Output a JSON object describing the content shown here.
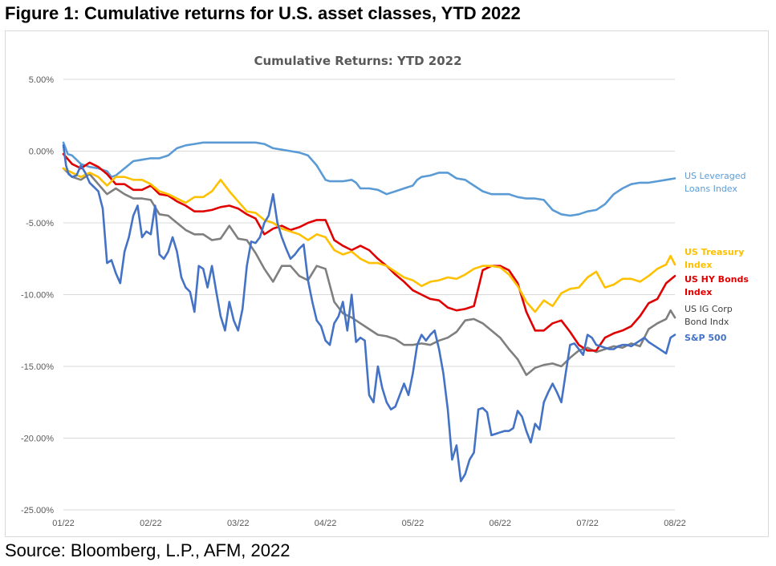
{
  "figure_title": "Figure 1: Cumulative returns for U.S. asset classes, YTD 2022",
  "source": "Source: Bloomberg, L.P., AFM, 2022",
  "colors": {
    "leveraged_loans": "#5b9bd5",
    "treasury": "#ffc000",
    "hy_bonds": "#e00000",
    "ig_corp": "#7f7f7f",
    "sp500": "#4472c4",
    "grid": "#d9d9d9",
    "axis_text": "#595959"
  },
  "chart_data": {
    "type": "line",
    "title": "Cumulative Returns: YTD 2022",
    "xlabel": "",
    "ylabel": "",
    "x_tick_labels": [
      "01/22",
      "02/22",
      "03/22",
      "04/22",
      "05/22",
      "06/22",
      "07/22",
      "08/22"
    ],
    "y_tick_labels": [
      "5.00%",
      "0.00%",
      "-5.00%",
      "-10.00%",
      "-15.00%",
      "-20.00%",
      "-25.00%"
    ],
    "y_ticks": [
      5,
      0,
      -5,
      -10,
      -15,
      -20,
      -25
    ],
    "ylim": [
      -25,
      5
    ],
    "xlim": [
      1,
      8
    ],
    "grid": "horizontal",
    "legend_placement": "right",
    "series": [
      {
        "name": "US Leveraged Loans Index",
        "legend_lines": [
          "US Leveraged",
          "Loans Index"
        ],
        "color_key": "leveraged_loans",
        "x": [
          1.0,
          1.05,
          1.1,
          1.2,
          1.3,
          1.4,
          1.5,
          1.55,
          1.6,
          1.7,
          1.8,
          1.9,
          2.0,
          2.1,
          2.2,
          2.3,
          2.4,
          2.5,
          2.6,
          2.7,
          2.8,
          2.9,
          3.0,
          3.1,
          3.2,
          3.3,
          3.4,
          3.5,
          3.6,
          3.7,
          3.8,
          3.9,
          4.0,
          4.05,
          4.1,
          4.2,
          4.3,
          4.35,
          4.4,
          4.5,
          4.6,
          4.7,
          4.8,
          4.9,
          5.0,
          5.05,
          5.1,
          5.2,
          5.3,
          5.4,
          5.5,
          5.6,
          5.7,
          5.8,
          5.9,
          6.0,
          6.1,
          6.2,
          6.3,
          6.4,
          6.5,
          6.6,
          6.7,
          6.8,
          6.9,
          7.0,
          7.1,
          7.2,
          7.3,
          7.4,
          7.5,
          7.6,
          7.7,
          7.8,
          7.9,
          8.0
        ],
        "y": [
          0.6,
          -0.2,
          -0.3,
          -0.9,
          -1.1,
          -1.2,
          -1.4,
          -1.8,
          -1.7,
          -1.2,
          -0.7,
          -0.6,
          -0.5,
          -0.5,
          -0.3,
          0.2,
          0.4,
          0.5,
          0.6,
          0.6,
          0.6,
          0.6,
          0.6,
          0.6,
          0.6,
          0.5,
          0.2,
          0.1,
          0.0,
          -0.1,
          -0.3,
          -1.0,
          -2.0,
          -2.1,
          -2.1,
          -2.1,
          -2.0,
          -2.2,
          -2.6,
          -2.6,
          -2.7,
          -3.0,
          -2.8,
          -2.6,
          -2.4,
          -2.0,
          -1.8,
          -1.7,
          -1.5,
          -1.5,
          -1.9,
          -2.0,
          -2.4,
          -2.8,
          -3.0,
          -3.0,
          -3.0,
          -3.2,
          -3.3,
          -3.3,
          -3.4,
          -4.1,
          -4.4,
          -4.5,
          -4.4,
          -4.2,
          -4.1,
          -3.7,
          -3.0,
          -2.6,
          -2.3,
          -2.2,
          -2.2,
          -2.1,
          -2.0,
          -1.9
        ]
      },
      {
        "name": "US Treasury Index",
        "legend_lines": [
          "US Treasury",
          "Index"
        ],
        "color_key": "treasury",
        "x": [
          1.0,
          1.1,
          1.2,
          1.3,
          1.4,
          1.5,
          1.6,
          1.7,
          1.8,
          1.9,
          2.0,
          2.1,
          2.2,
          2.3,
          2.4,
          2.5,
          2.6,
          2.7,
          2.8,
          2.9,
          3.0,
          3.1,
          3.2,
          3.3,
          3.4,
          3.5,
          3.6,
          3.7,
          3.8,
          3.9,
          4.0,
          4.1,
          4.2,
          4.3,
          4.4,
          4.5,
          4.6,
          4.7,
          4.8,
          4.9,
          5.0,
          5.1,
          5.2,
          5.3,
          5.4,
          5.5,
          5.6,
          5.7,
          5.8,
          5.9,
          6.0,
          6.1,
          6.2,
          6.3,
          6.4,
          6.5,
          6.6,
          6.7,
          6.8,
          6.9,
          7.0,
          7.1,
          7.2,
          7.3,
          7.4,
          7.5,
          7.6,
          7.7,
          7.8,
          7.9,
          7.95,
          8.0
        ],
        "y": [
          -1.2,
          -1.5,
          -1.8,
          -1.5,
          -1.8,
          -2.4,
          -1.8,
          -1.8,
          -2.0,
          -2.0,
          -2.3,
          -2.8,
          -3.0,
          -3.3,
          -3.6,
          -3.2,
          -3.2,
          -2.8,
          -2.0,
          -2.8,
          -3.5,
          -4.2,
          -4.3,
          -4.8,
          -5.0,
          -5.4,
          -5.6,
          -5.8,
          -6.2,
          -5.8,
          -6.0,
          -6.9,
          -7.2,
          -7.0,
          -7.5,
          -7.8,
          -7.8,
          -8.0,
          -8.4,
          -8.8,
          -9.0,
          -9.4,
          -9.1,
          -9.0,
          -8.8,
          -8.9,
          -8.6,
          -8.2,
          -8.0,
          -8.0,
          -8.1,
          -8.6,
          -9.4,
          -10.5,
          -11.2,
          -10.4,
          -10.8,
          -9.9,
          -9.6,
          -9.5,
          -8.8,
          -8.4,
          -9.5,
          -9.3,
          -8.9,
          -8.9,
          -9.1,
          -8.7,
          -8.2,
          -7.9,
          -7.3,
          -7.9
        ]
      },
      {
        "name": "US HY Bonds Index",
        "legend_lines": [
          "US HY Bonds",
          "Index"
        ],
        "color_key": "hy_bonds",
        "x": [
          1.0,
          1.1,
          1.2,
          1.3,
          1.4,
          1.5,
          1.6,
          1.7,
          1.8,
          1.9,
          2.0,
          2.1,
          2.2,
          2.3,
          2.4,
          2.5,
          2.6,
          2.7,
          2.8,
          2.9,
          3.0,
          3.1,
          3.2,
          3.3,
          3.4,
          3.5,
          3.6,
          3.7,
          3.8,
          3.9,
          4.0,
          4.1,
          4.2,
          4.3,
          4.4,
          4.5,
          4.6,
          4.7,
          4.8,
          4.9,
          5.0,
          5.1,
          5.2,
          5.3,
          5.4,
          5.5,
          5.6,
          5.7,
          5.8,
          5.9,
          6.0,
          6.1,
          6.2,
          6.3,
          6.4,
          6.5,
          6.6,
          6.7,
          6.8,
          6.9,
          7.0,
          7.1,
          7.2,
          7.3,
          7.4,
          7.5,
          7.6,
          7.7,
          7.8,
          7.9,
          8.0
        ],
        "y": [
          -0.2,
          -0.9,
          -1.2,
          -0.8,
          -1.1,
          -1.6,
          -2.3,
          -2.3,
          -2.7,
          -2.7,
          -2.4,
          -3.0,
          -3.1,
          -3.5,
          -3.8,
          -4.2,
          -4.2,
          -4.1,
          -3.9,
          -3.8,
          -4.0,
          -4.4,
          -4.7,
          -5.8,
          -5.4,
          -5.2,
          -5.5,
          -5.3,
          -5.0,
          -4.8,
          -4.8,
          -6.2,
          -6.6,
          -6.9,
          -6.6,
          -6.9,
          -7.5,
          -8.0,
          -8.6,
          -9.1,
          -9.7,
          -10.0,
          -10.3,
          -10.4,
          -10.9,
          -11.1,
          -11.0,
          -10.8,
          -8.3,
          -8.0,
          -8.0,
          -8.3,
          -9.2,
          -11.2,
          -12.5,
          -12.5,
          -12.0,
          -11.8,
          -12.6,
          -13.5,
          -13.9,
          -13.9,
          -13.0,
          -12.7,
          -12.5,
          -12.2,
          -11.5,
          -10.6,
          -10.3,
          -9.2,
          -8.7
        ]
      },
      {
        "name": "US IG Corp Bond Indx",
        "legend_lines": [
          "US IG  Corp",
          "Bond Indx"
        ],
        "color_key": "ig_corp",
        "x": [
          1.0,
          1.1,
          1.2,
          1.3,
          1.4,
          1.5,
          1.6,
          1.7,
          1.8,
          1.9,
          2.0,
          2.1,
          2.2,
          2.3,
          2.4,
          2.5,
          2.6,
          2.7,
          2.8,
          2.9,
          3.0,
          3.1,
          3.2,
          3.3,
          3.4,
          3.5,
          3.6,
          3.7,
          3.8,
          3.9,
          4.0,
          4.1,
          4.2,
          4.3,
          4.4,
          4.5,
          4.6,
          4.7,
          4.8,
          4.9,
          5.0,
          5.1,
          5.2,
          5.3,
          5.4,
          5.5,
          5.6,
          5.7,
          5.8,
          5.9,
          6.0,
          6.1,
          6.2,
          6.3,
          6.4,
          6.5,
          6.6,
          6.7,
          6.8,
          6.9,
          7.0,
          7.1,
          7.2,
          7.3,
          7.4,
          7.5,
          7.6,
          7.7,
          7.8,
          7.9,
          7.95,
          8.0
        ],
        "y": [
          -1.2,
          -1.8,
          -2.0,
          -1.6,
          -2.3,
          -3.0,
          -2.6,
          -3.0,
          -3.3,
          -3.3,
          -3.4,
          -4.4,
          -4.5,
          -5.0,
          -5.5,
          -5.8,
          -5.8,
          -6.2,
          -6.1,
          -5.2,
          -6.1,
          -6.2,
          -7.1,
          -8.2,
          -9.1,
          -8.0,
          -8.0,
          -8.7,
          -9.0,
          -8.0,
          -8.2,
          -10.5,
          -11.3,
          -11.6,
          -12.0,
          -12.4,
          -12.8,
          -12.9,
          -13.1,
          -13.5,
          -13.5,
          -13.4,
          -13.5,
          -13.2,
          -13.0,
          -12.6,
          -11.8,
          -11.7,
          -12.0,
          -12.5,
          -13.0,
          -13.8,
          -14.5,
          -15.6,
          -15.1,
          -14.9,
          -14.8,
          -15.0,
          -14.4,
          -13.9,
          -13.7,
          -14.0,
          -13.8,
          -13.6,
          -13.7,
          -13.4,
          -13.6,
          -12.4,
          -12.0,
          -11.7,
          -11.1,
          -11.6
        ]
      },
      {
        "name": "S&P 500",
        "legend_lines": [
          "S&P 500"
        ],
        "color_key": "sp500",
        "x": [
          1.0,
          1.03,
          1.06,
          1.1,
          1.15,
          1.2,
          1.25,
          1.3,
          1.4,
          1.45,
          1.5,
          1.55,
          1.6,
          1.65,
          1.7,
          1.75,
          1.8,
          1.85,
          1.9,
          1.95,
          2.0,
          2.05,
          2.1,
          2.15,
          2.2,
          2.25,
          2.3,
          2.35,
          2.4,
          2.45,
          2.5,
          2.55,
          2.6,
          2.65,
          2.7,
          2.75,
          2.8,
          2.85,
          2.9,
          2.95,
          3.0,
          3.05,
          3.1,
          3.15,
          3.2,
          3.25,
          3.3,
          3.35,
          3.4,
          3.45,
          3.5,
          3.55,
          3.6,
          3.65,
          3.7,
          3.75,
          3.8,
          3.85,
          3.9,
          3.95,
          4.0,
          4.05,
          4.1,
          4.15,
          4.2,
          4.25,
          4.3,
          4.35,
          4.4,
          4.45,
          4.5,
          4.55,
          4.6,
          4.65,
          4.7,
          4.75,
          4.8,
          4.85,
          4.9,
          4.95,
          5.0,
          5.05,
          5.1,
          5.15,
          5.2,
          5.25,
          5.3,
          5.35,
          5.4,
          5.45,
          5.5,
          5.55,
          5.6,
          5.65,
          5.7,
          5.75,
          5.8,
          5.85,
          5.9,
          5.95,
          6.0,
          6.05,
          6.1,
          6.15,
          6.2,
          6.25,
          6.3,
          6.35,
          6.4,
          6.45,
          6.5,
          6.55,
          6.6,
          6.65,
          6.7,
          6.75,
          6.8,
          6.85,
          6.9,
          6.95,
          7.0,
          7.05,
          7.1,
          7.15,
          7.2,
          7.25,
          7.3,
          7.35,
          7.4,
          7.45,
          7.5,
          7.55,
          7.6,
          7.65,
          7.7,
          7.75,
          7.8,
          7.85,
          7.9,
          7.95,
          8.0
        ],
        "y": [
          0.4,
          -1.0,
          -1.6,
          -1.8,
          -1.7,
          -1.0,
          -1.5,
          -2.2,
          -2.8,
          -4.0,
          -7.8,
          -7.6,
          -8.5,
          -9.2,
          -7.0,
          -6.0,
          -4.5,
          -3.8,
          -6.0,
          -5.6,
          -5.8,
          -3.8,
          -7.2,
          -7.5,
          -7.0,
          -6.0,
          -7.0,
          -8.8,
          -9.5,
          -9.8,
          -11.2,
          -8.0,
          -8.2,
          -9.5,
          -8.0,
          -9.8,
          -11.5,
          -12.5,
          -10.5,
          -11.8,
          -12.5,
          -11.0,
          -8.0,
          -6.3,
          -6.4,
          -6.0,
          -5.0,
          -4.5,
          -3.0,
          -5.0,
          -6.0,
          -6.8,
          -7.5,
          -7.2,
          -6.8,
          -6.5,
          -9.0,
          -10.5,
          -11.8,
          -12.2,
          -13.2,
          -13.5,
          -12.0,
          -11.5,
          -10.5,
          -12.5,
          -10.0,
          -13.3,
          -13.0,
          -13.2,
          -17.0,
          -17.5,
          -15.0,
          -16.5,
          -17.5,
          -18.0,
          -17.8,
          -17.0,
          -16.2,
          -17.0,
          -15.5,
          -13.5,
          -12.8,
          -13.2,
          -12.8,
          -12.5,
          -13.8,
          -15.5,
          -18.0,
          -21.5,
          -20.5,
          -23.0,
          -22.5,
          -21.5,
          -21.0,
          -18.0,
          -17.9,
          -18.2,
          -19.8,
          -19.7,
          -19.6,
          -19.5,
          -19.5,
          -19.3,
          -18.1,
          -18.5,
          -19.5,
          -20.3,
          -19.0,
          -19.4,
          -17.5,
          -16.8,
          -16.2,
          -16.8,
          -17.5,
          -15.5,
          -13.5,
          -13.4,
          -13.8,
          -14.2,
          -12.8,
          -13.0,
          -13.5,
          -13.6,
          -13.7,
          -13.8,
          -13.8,
          -13.6,
          -13.5,
          -13.5,
          -13.6,
          -13.4,
          -13.2,
          -13.0,
          -13.3,
          -13.5,
          -13.7,
          -13.9,
          -14.1,
          -13.0,
          -12.8
        ]
      }
    ]
  }
}
